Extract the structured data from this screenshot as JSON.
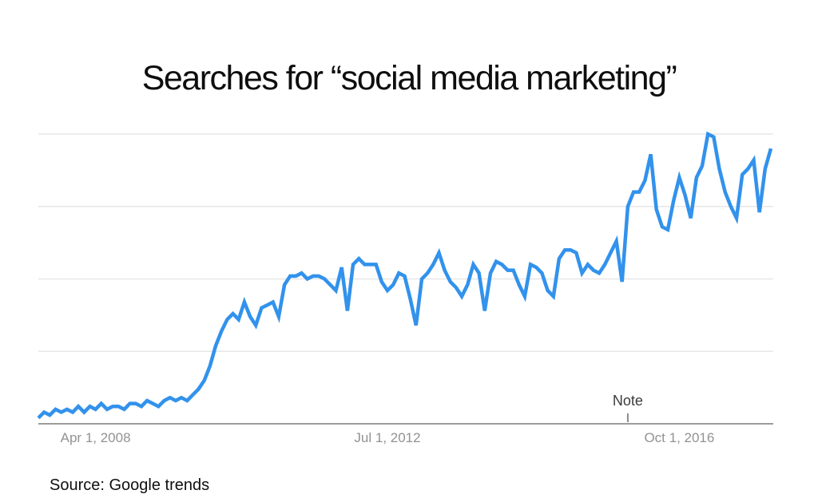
{
  "title": "Searches for “social media marketing”",
  "source_note": "Source: Google trends",
  "chart_data": {
    "type": "line",
    "title": "Searches for “social media marketing”",
    "series_name": "social media marketing",
    "interval": "monthly",
    "x_start_month": "2007-06",
    "x_end_month": "2018-02",
    "values": [
      2,
      4,
      3,
      5,
      4,
      5,
      4,
      6,
      4,
      6,
      5,
      7,
      5,
      6,
      6,
      5,
      7,
      7,
      6,
      8,
      7,
      6,
      8,
      9,
      8,
      9,
      8,
      10,
      12,
      15,
      20,
      27,
      32,
      36,
      38,
      36,
      42,
      37,
      34,
      40,
      41,
      42,
      37,
      48,
      51,
      51,
      52,
      50,
      51,
      51,
      50,
      48,
      46,
      54,
      39,
      55,
      57,
      55,
      55,
      55,
      49,
      46,
      48,
      52,
      51,
      43,
      34,
      50,
      52,
      55,
      59,
      53,
      49,
      47,
      44,
      48,
      55,
      52,
      39,
      52,
      56,
      55,
      53,
      53,
      48,
      44,
      55,
      54,
      52,
      46,
      44,
      57,
      60,
      60,
      59,
      52,
      55,
      53,
      52,
      55,
      59,
      63,
      49,
      75,
      80,
      80,
      84,
      93,
      74,
      68,
      67,
      77,
      85,
      79,
      71,
      85,
      89,
      100,
      99,
      88,
      80,
      75,
      71,
      86,
      88,
      91,
      73,
      88,
      95
    ],
    "ylim": [
      0,
      100
    ],
    "y_axis_labels_visible": false,
    "grid": "horizontal",
    "gridline_values": [
      25,
      50,
      75,
      100
    ],
    "legend": "none",
    "x_tick_labels": [
      {
        "label": "Apr 1, 2008",
        "month_index": 10
      },
      {
        "label": "Jul 1, 2012",
        "month_index": 61
      },
      {
        "label": "Oct 1, 2016",
        "month_index": 112
      }
    ],
    "annotation": {
      "label": "Note",
      "month_index": 103
    },
    "colors": {
      "line": "#3292ec",
      "gridline": "#e7e7e7",
      "axis": "#9b9b9b",
      "tick_label": "#929292",
      "note_text": "#3a3a3a",
      "note_tick": "#8a8a8a"
    }
  }
}
